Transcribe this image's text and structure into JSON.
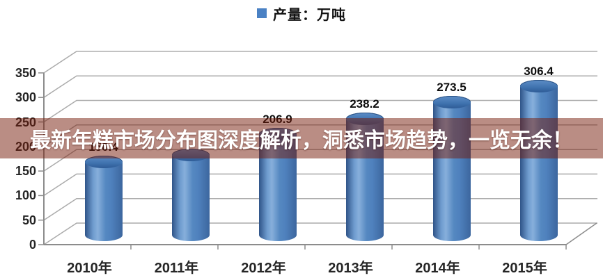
{
  "legend": {
    "label": "产量：万吨",
    "marker_color": "#4a81c4"
  },
  "overlay_banner": {
    "text": "最新年糕市场分布图深度解析，洞悉市场趋势，一览无余！",
    "text_color": "#ffffff",
    "background_color": "rgba(118,28,10,0.5)"
  },
  "chart_data": {
    "type": "bar",
    "subtype": "3d-cylinder",
    "title": "",
    "xlabel": "",
    "ylabel": "",
    "legend_position": "top-center",
    "grid": true,
    "categories": [
      "2010年",
      "2011年",
      "2012年",
      "2013年",
      "2014年",
      "2015年"
    ],
    "series": [
      {
        "name": "产量：万吨",
        "values": [
          150.4,
          165,
          206.9,
          238.2,
          273.5,
          306.4
        ]
      }
    ],
    "value_labels": [
      "150.4",
      "",
      "206.9",
      "238.2",
      "273.5",
      "306.4"
    ],
    "y_ticks": [
      0,
      50,
      100,
      150,
      200,
      250,
      300,
      350
    ],
    "y_tick_labels": [
      "0",
      "50",
      "100",
      "150",
      "200",
      "250",
      "300",
      "350"
    ],
    "ylim": [
      0,
      350
    ],
    "bar_color": "#4f81bd",
    "gridline_color": "#ababab",
    "axis_color": "#8c8c8c"
  }
}
